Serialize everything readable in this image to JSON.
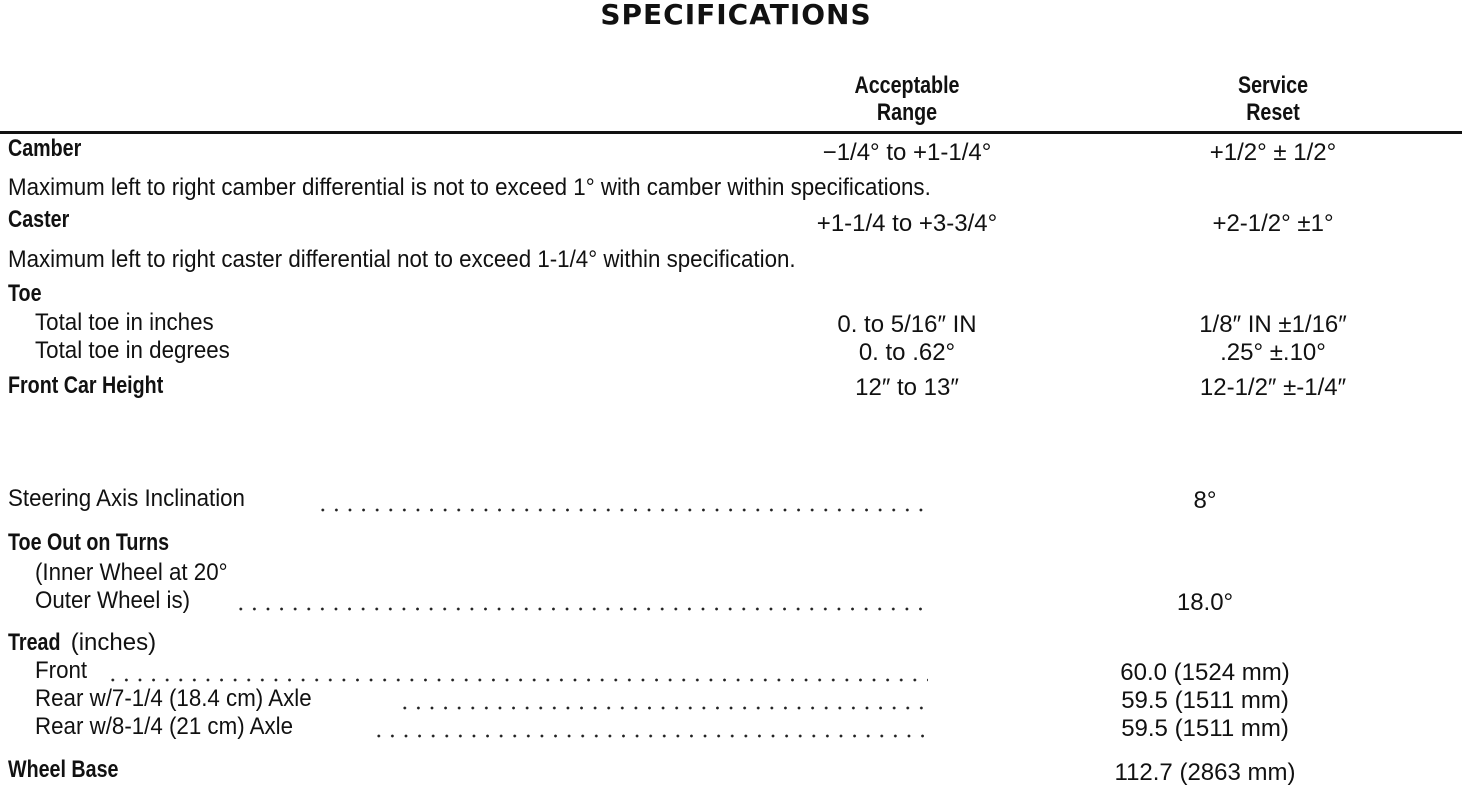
{
  "title": "SPECIFICATIONS",
  "headers": {
    "range": [
      "Acceptable",
      "Range"
    ],
    "reset": [
      "Service",
      "Reset"
    ]
  },
  "camber": {
    "label": "Camber",
    "range": "−1/4° to +1-1/4°",
    "reset": "+1/2° ± 1/2°",
    "note": "Maximum left to right camber differential is not to exceed 1° with camber within specifications."
  },
  "caster": {
    "label": "Caster",
    "range": "+1-1/4 to +3-3/4°",
    "reset": "+2-1/2° ±1°",
    "note": "Maximum left to right caster differential not to exceed 1-1/4° within specification."
  },
  "toe": {
    "label": "Toe",
    "inches": {
      "label": "Total toe in inches",
      "range": "0. to 5/16″ IN",
      "reset": "1/8″ IN ±1/16″"
    },
    "degrees": {
      "label": "Total toe in degrees",
      "range": "0. to .62°",
      "reset": ".25° ±.10°"
    }
  },
  "front_car_height": {
    "label": "Front Car Height",
    "range": "12″ to 13″",
    "reset": "12-1/2″ ±-1/4″"
  },
  "steering_axis": {
    "label": "Steering Axis Inclination",
    "value": "8°"
  },
  "toe_out": {
    "label": "Toe Out on Turns",
    "line1": "(Inner Wheel at 20°",
    "line2": "Outer Wheel is)",
    "value": "18.0°"
  },
  "tread": {
    "label": "Tread",
    "unit": "(inches)",
    "rows": [
      {
        "label": "Front",
        "value": "60.0 (1524 mm)"
      },
      {
        "label": "Rear w/7-1/4 (18.4 cm) Axle",
        "value": "59.5 (1511 mm)"
      },
      {
        "label": "Rear w/8-1/4 (21 cm) Axle",
        "value": "59.5 (1511 mm)"
      }
    ]
  },
  "wheel_base": {
    "label": "Wheel Base",
    "value": "112.7 (2863 mm)"
  }
}
